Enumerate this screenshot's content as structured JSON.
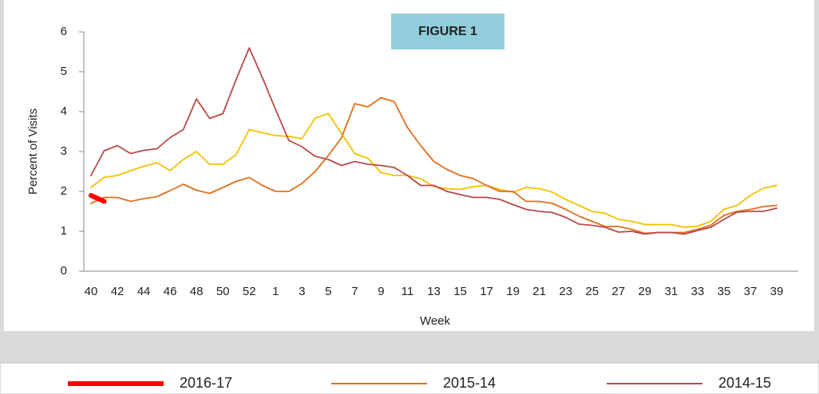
{
  "chart_data": {
    "type": "line",
    "title": "FIGURE 1",
    "x_label": "Week",
    "y_label": "Percent of Visits",
    "categories": [
      40,
      null,
      42,
      null,
      44,
      null,
      46,
      null,
      48,
      null,
      50,
      null,
      52,
      null,
      1,
      null,
      3,
      null,
      5,
      null,
      7,
      null,
      9,
      null,
      11,
      null,
      13,
      null,
      15,
      null,
      17,
      null,
      19,
      null,
      21,
      null,
      23,
      null,
      25,
      null,
      27,
      null,
      29,
      null,
      31,
      null,
      33,
      null,
      35,
      null,
      37,
      null,
      39
    ],
    "ylim": [
      0,
      6
    ],
    "yticks": [
      0,
      1,
      2,
      3,
      4,
      5,
      6
    ],
    "series": [
      {
        "name": "2016-17",
        "color": "#ff0000",
        "values": [
          1.9,
          1.75,
          null,
          null,
          null,
          null,
          null,
          null,
          null,
          null,
          null,
          null,
          null,
          null,
          null,
          null,
          null,
          null,
          null,
          null,
          null,
          null,
          null,
          null,
          null,
          null,
          null,
          null,
          null,
          null,
          null,
          null,
          null,
          null,
          null,
          null,
          null,
          null,
          null,
          null,
          null,
          null,
          null,
          null,
          null,
          null,
          null,
          null,
          null,
          null,
          null,
          null,
          null
        ]
      },
      {
        "name": "2015-14",
        "color": "#e0701c",
        "values": [
          1.7,
          1.85,
          1.85,
          1.75,
          1.82,
          1.87,
          2.02,
          2.18,
          2.03,
          1.95,
          2.1,
          2.25,
          2.35,
          2.15,
          2.0,
          2.0,
          2.2,
          2.5,
          2.9,
          3.35,
          4.2,
          4.12,
          4.35,
          4.25,
          3.6,
          3.15,
          2.75,
          2.55,
          2.4,
          2.32,
          2.15,
          2.0,
          2.0,
          1.75,
          1.75,
          1.7,
          1.55,
          1.38,
          1.25,
          1.12,
          1.12,
          1.05,
          0.95,
          0.97,
          0.97,
          0.97,
          1.05,
          1.15,
          1.4,
          1.5,
          1.55,
          1.62,
          1.65
        ]
      },
      {
        "name": "2014-15",
        "color": "#b94a4a",
        "values": [
          2.4,
          3.02,
          3.15,
          2.95,
          3.03,
          3.07,
          3.35,
          3.55,
          4.32,
          3.83,
          3.95,
          4.8,
          5.6,
          4.85,
          4.05,
          3.28,
          3.12,
          2.88,
          2.8,
          2.65,
          2.75,
          2.68,
          2.65,
          2.6,
          2.4,
          2.15,
          2.15,
          2.0,
          1.92,
          1.85,
          1.85,
          1.8,
          1.67,
          1.55,
          1.5,
          1.47,
          1.35,
          1.18,
          1.15,
          1.1,
          0.98,
          1.0,
          0.93,
          0.97,
          0.97,
          0.93,
          1.02,
          1.1,
          1.3,
          1.48,
          1.5,
          1.5,
          1.58
        ]
      },
      {
        "color": "#f5c000",
        "values": [
          2.1,
          2.35,
          2.4,
          2.52,
          2.63,
          2.72,
          2.52,
          2.8,
          3.0,
          2.68,
          2.68,
          2.92,
          3.55,
          3.47,
          3.4,
          3.38,
          3.32,
          3.84,
          3.95,
          3.45,
          2.95,
          2.83,
          2.47,
          2.4,
          2.4,
          2.32,
          2.12,
          2.07,
          2.05,
          2.12,
          2.15,
          2.05,
          1.98,
          2.1,
          2.07,
          1.98,
          1.8,
          1.65,
          1.5,
          1.45,
          1.3,
          1.25,
          1.17,
          1.17,
          1.17,
          1.1,
          1.13,
          1.25,
          1.55,
          1.65,
          1.9,
          2.08,
          2.15
        ]
      }
    ]
  }
}
